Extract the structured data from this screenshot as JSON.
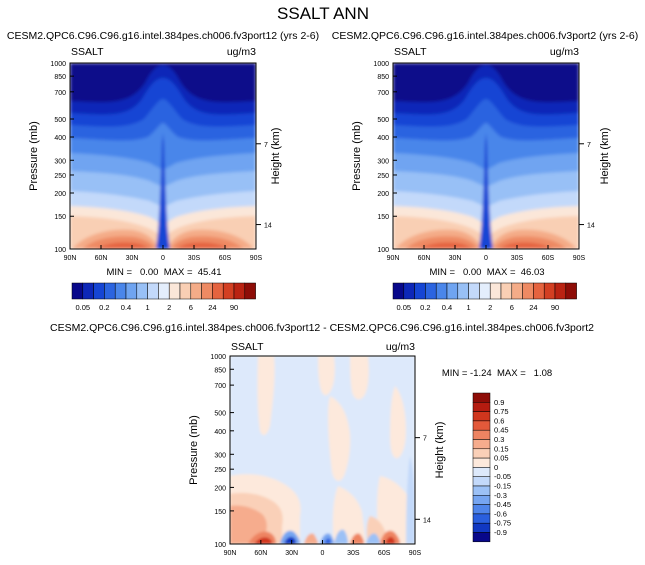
{
  "figure": {
    "title": "SSALT ANN"
  },
  "chart_data": [
    {
      "type": "heatmap",
      "title": "CESM2.QPC6.C96.C96.g16.intel.384pes.ch006.fv3port12 (yrs 2-6)",
      "variable": "SSALT",
      "units": "ug/m3",
      "xlabel": "",
      "ylabel": "Pressure (mb)",
      "right_axis_label": "Height (km)",
      "x_ticks": [
        "90N",
        "60N",
        "30N",
        "0",
        "30S",
        "60S",
        "90S"
      ],
      "y_ticks": [
        100,
        150,
        200,
        250,
        300,
        400,
        500,
        700,
        850,
        1000
      ],
      "y_scale": "log",
      "ylim": [
        1000,
        100
      ],
      "height_ticks": [
        14,
        7
      ],
      "stats": "MIN =   0.00  MAX =  45.41",
      "min": 0.0,
      "max": 45.41
    },
    {
      "type": "heatmap",
      "title": "CESM2.QPC6.C96.C96.g16.intel.384pes.ch006.fv3port2 (yrs 2-6)",
      "variable": "SSALT",
      "units": "ug/m3",
      "xlabel": "",
      "ylabel": "Pressure (mb)",
      "right_axis_label": "Height (km)",
      "x_ticks": [
        "90N",
        "60N",
        "30N",
        "0",
        "30S",
        "60S",
        "90S"
      ],
      "y_ticks": [
        100,
        150,
        200,
        250,
        300,
        400,
        500,
        700,
        850,
        1000
      ],
      "y_scale": "log",
      "ylim": [
        1000,
        100
      ],
      "height_ticks": [
        14,
        7
      ],
      "stats": "MIN =   0.00  MAX =  46.03",
      "min": 0.0,
      "max": 46.03
    },
    {
      "type": "heatmap",
      "title": "CESM2.QPC6.C96.C96.g16.intel.384pes.ch006.fv3port12 - CESM2.QPC6.C96.C96.g16.intel.384pes.ch006.fv3port2",
      "variable": "SSALT",
      "units": "ug/m3",
      "xlabel": "",
      "ylabel": "Pressure (mb)",
      "right_axis_label": "Height (km)",
      "x_ticks": [
        "90N",
        "60N",
        "30N",
        "0",
        "30S",
        "60S",
        "90S"
      ],
      "y_ticks": [
        100,
        150,
        200,
        250,
        300,
        400,
        500,
        700,
        850,
        1000
      ],
      "y_scale": "log",
      "ylim": [
        1000,
        100
      ],
      "height_ticks": [
        14,
        7
      ],
      "stats": "MIN = -1.24  MAX =   1.08",
      "min": -1.24,
      "max": 1.08
    }
  ],
  "colorbars": {
    "absolute": {
      "labels": [
        "0.05",
        "0.2",
        "0.4",
        "1",
        "2",
        "6",
        "24",
        "90"
      ],
      "colors": [
        "#08088a",
        "#0d27b8",
        "#1545d4",
        "#2b64e0",
        "#4a86ea",
        "#6fa4f1",
        "#98c0f6",
        "#c3d9fa",
        "#e4eefc",
        "#fbe7d9",
        "#f9cfb4",
        "#f4ac88",
        "#ee8a63",
        "#e5633f",
        "#d33f22",
        "#ba2312",
        "#8e0d07"
      ]
    },
    "difference": {
      "labels": [
        "0.9",
        "0.75",
        "0.6",
        "0.45",
        "0.3",
        "0.15",
        "0.05",
        "0",
        "-0.05",
        "-0.15",
        "-0.3",
        "-0.45",
        "-0.6",
        "-0.75",
        "-0.9"
      ],
      "colors": [
        "#8e0d07",
        "#b51c10",
        "#d0361d",
        "#e3593a",
        "#ee8462",
        "#f6ac8d",
        "#fad0b8",
        "#fde9dc",
        "#dde9fb",
        "#c3d9fa",
        "#9cc1f6",
        "#76a5f1",
        "#4f85ea",
        "#2a5fde",
        "#1138c2",
        "#08088a"
      ]
    }
  }
}
